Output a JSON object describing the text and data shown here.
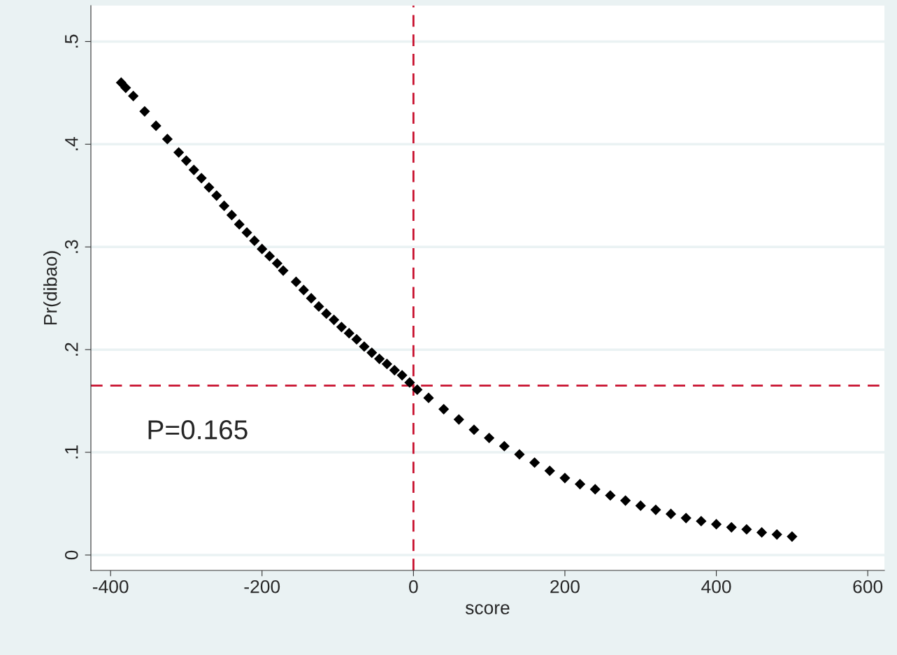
{
  "chart_data": {
    "type": "scatter",
    "xlabel": "score",
    "ylabel": "Pr(dibao)",
    "x": [
      -386,
      -380,
      -370,
      -355,
      -340,
      -325,
      -310,
      -300,
      -290,
      -280,
      -270,
      -260,
      -250,
      -240,
      -230,
      -220,
      -210,
      -200,
      -190,
      -180,
      -172,
      -155,
      -145,
      -135,
      -125,
      -115,
      -105,
      -95,
      -85,
      -75,
      -65,
      -55,
      -45,
      -35,
      -25,
      -15,
      -5,
      5,
      20,
      40,
      60,
      80,
      100,
      120,
      140,
      160,
      180,
      200,
      220,
      240,
      260,
      280,
      300,
      320,
      340,
      360,
      380,
      400,
      420,
      440,
      460,
      480,
      500
    ],
    "series": [
      {
        "color": "#000000",
        "values": [
          0.46,
          0.455,
          0.447,
          0.432,
          0.418,
          0.405,
          0.392,
          0.384,
          0.375,
          0.367,
          0.358,
          0.35,
          0.34,
          0.331,
          0.322,
          0.314,
          0.306,
          0.298,
          0.291,
          0.284,
          0.277,
          0.266,
          0.258,
          0.25,
          0.242,
          0.235,
          0.229,
          0.222,
          0.216,
          0.21,
          0.203,
          0.197,
          0.191,
          0.186,
          0.18,
          0.175,
          0.168,
          0.161,
          0.153,
          0.142,
          0.132,
          0.122,
          0.114,
          0.106,
          0.098,
          0.09,
          0.082,
          0.075,
          0.069,
          0.064,
          0.058,
          0.053,
          0.048,
          0.044,
          0.04,
          0.036,
          0.033,
          0.03,
          0.027,
          0.025,
          0.022,
          0.02,
          0.018
        ]
      }
    ],
    "marker": "diamond",
    "xlim": [
      -426,
      622
    ],
    "xticks": [
      -400,
      -200,
      0,
      200,
      400,
      600
    ],
    "ylim": [
      -0.015,
      0.535
    ],
    "yticks": [
      {
        "value": 0,
        "label": "0"
      },
      {
        "value": 0.1,
        "label": ".1"
      },
      {
        "value": 0.2,
        "label": ".2"
      },
      {
        "value": 0.3,
        "label": ".3"
      },
      {
        "value": 0.4,
        "label": ".4"
      },
      {
        "value": 0.5,
        "label": ".5"
      }
    ],
    "grid": "y",
    "ref_lines": [
      {
        "axis": "x",
        "value": 0,
        "color": "#c8102e",
        "line_style": "dashed"
      },
      {
        "axis": "y",
        "value": 0.165,
        "label": "P=0.165",
        "color": "#c8102e",
        "line_style": "dashed"
      }
    ]
  }
}
